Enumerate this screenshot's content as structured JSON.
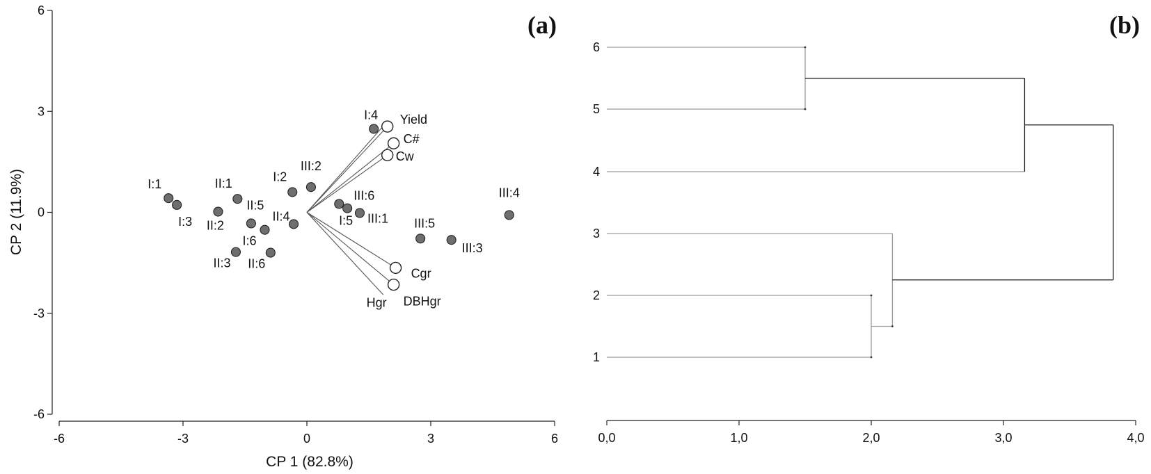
{
  "chart_data": [
    {
      "type": "scatter",
      "panel_label": "(a)",
      "xlabel": "CP 1 (82.8%)",
      "ylabel": "CP 2 (11.9%)",
      "xlim": [
        -6,
        6
      ],
      "ylim": [
        -6,
        6
      ],
      "xticks": [
        "-6",
        "-3",
        "0",
        "3",
        "6"
      ],
      "yticks": [
        "-6",
        "-3",
        "0",
        "3",
        "6"
      ],
      "grid": false,
      "points": [
        {
          "label": "I:1",
          "x": -3.35,
          "y": 0.42
        },
        {
          "label": "I:3",
          "x": -3.15,
          "y": 0.22
        },
        {
          "label": "II:1",
          "x": -1.68,
          "y": 0.4
        },
        {
          "label": "II:2",
          "x": -2.15,
          "y": 0.02
        },
        {
          "label": "II:5",
          "x": -1.35,
          "y": -0.33
        },
        {
          "label": "II:4",
          "x": -0.32,
          "y": -0.35
        },
        {
          "label": "I:6",
          "x": -1.02,
          "y": -0.52
        },
        {
          "label": "II:3",
          "x": -1.72,
          "y": -1.18
        },
        {
          "label": "II:6",
          "x": -0.88,
          "y": -1.2
        },
        {
          "label": "I:2",
          "x": -0.35,
          "y": 0.6
        },
        {
          "label": "III:2",
          "x": 0.1,
          "y": 0.75
        },
        {
          "label": "I:4",
          "x": 1.62,
          "y": 2.48
        },
        {
          "label": "III:6",
          "x": 0.78,
          "y": 0.25
        },
        {
          "label": "I:5",
          "x": 0.98,
          "y": 0.12
        },
        {
          "label": "III:1",
          "x": 1.28,
          "y": -0.02
        },
        {
          "label": "III:5",
          "x": 2.75,
          "y": -0.78
        },
        {
          "label": "III:3",
          "x": 3.5,
          "y": -0.82
        },
        {
          "label": "III:4",
          "x": 4.9,
          "y": -0.08
        }
      ],
      "vectors": [
        {
          "label": "Yield",
          "x": 1.95,
          "y": 2.55
        },
        {
          "label": "C#",
          "x": 2.1,
          "y": 2.05
        },
        {
          "label": "Cw",
          "x": 1.95,
          "y": 1.7
        },
        {
          "label": "Cgr",
          "x": 2.15,
          "y": -1.65
        },
        {
          "label": "DBHgr",
          "x": 2.1,
          "y": -2.15
        }
      ],
      "extra_labels": [
        {
          "label": "Hgr"
        }
      ]
    },
    {
      "type": "dendrogram",
      "panel_label": "(b)",
      "xlim": [
        0,
        4
      ],
      "xticks": [
        "0,0",
        "1,0",
        "2,0",
        "3,0",
        "4,0"
      ],
      "leaves": [
        "6",
        "5",
        "4",
        "3",
        "2",
        "1"
      ],
      "merges": [
        {
          "left": "2",
          "right": "1",
          "height": 2.0
        },
        {
          "left": "3",
          "right": "(2,1)",
          "height": 2.16
        },
        {
          "left": "6",
          "right": "5",
          "height": 1.5
        },
        {
          "left": "4",
          "right": "(6,5)",
          "height": 3.16
        },
        {
          "left": "(4,6,5)",
          "right": "(3,2,1)",
          "height": 3.83
        }
      ]
    }
  ],
  "colors": {
    "point_fill": "#6e6e6e",
    "vector_fill": "#ffffff",
    "line_dark": "#1a1a1a",
    "line_light": "#9a9a9a"
  }
}
